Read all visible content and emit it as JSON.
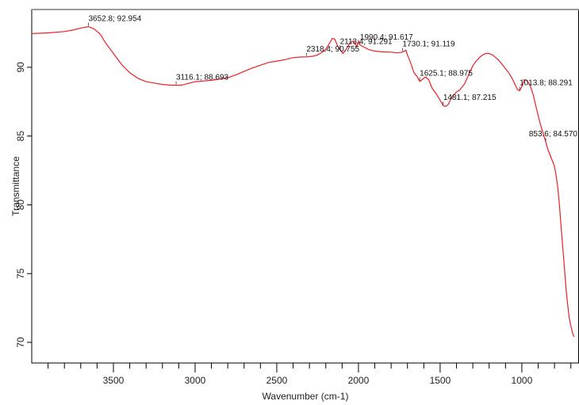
{
  "chart_data": {
    "type": "line",
    "title": "",
    "xlabel": "Wavenumber (cm-1)",
    "ylabel": "Transmittance",
    "xlim": [
      4000,
      650
    ],
    "ylim": [
      68.5,
      94.2
    ],
    "x_reversed": true,
    "x_major_ticks": [
      3500,
      3000,
      2500,
      2000,
      1500,
      1000
    ],
    "x_tick_labels": [
      "3500",
      "3000",
      "2500",
      "2000",
      "1500",
      "1000"
    ],
    "x_minor_step": 100,
    "y_ticks": [
      70,
      75,
      80,
      85,
      90
    ],
    "y_tick_labels": [
      "70",
      "75",
      "80",
      "85",
      "90"
    ],
    "y_tick_rotation": -90,
    "grid": false,
    "legend": "none",
    "line_color": "#e8202a",
    "series": [
      {
        "points": [
          [
            4000,
            92.45
          ],
          [
            3900,
            92.5
          ],
          [
            3800,
            92.6
          ],
          [
            3750,
            92.7
          ],
          [
            3700,
            92.85
          ],
          [
            3652.8,
            92.954
          ],
          [
            3620,
            92.8
          ],
          [
            3580,
            92.4
          ],
          [
            3550,
            91.8
          ],
          [
            3500,
            91.0
          ],
          [
            3450,
            90.2
          ],
          [
            3400,
            89.6
          ],
          [
            3350,
            89.2
          ],
          [
            3300,
            88.95
          ],
          [
            3250,
            88.85
          ],
          [
            3200,
            88.75
          ],
          [
            3150,
            88.7
          ],
          [
            3116.1,
            88.693
          ],
          [
            3080,
            88.7
          ],
          [
            3050,
            88.8
          ],
          [
            3000,
            88.95
          ],
          [
            2950,
            89.0
          ],
          [
            2900,
            89.05
          ],
          [
            2850,
            89.15
          ],
          [
            2800,
            89.25
          ],
          [
            2750,
            89.45
          ],
          [
            2700,
            89.7
          ],
          [
            2650,
            89.95
          ],
          [
            2600,
            90.15
          ],
          [
            2550,
            90.35
          ],
          [
            2500,
            90.45
          ],
          [
            2450,
            90.55
          ],
          [
            2400,
            90.7
          ],
          [
            2350,
            90.75
          ],
          [
            2318.4,
            90.755
          ],
          [
            2280,
            90.8
          ],
          [
            2250,
            90.9
          ],
          [
            2220,
            91.1
          ],
          [
            2200,
            91.3
          ],
          [
            2180,
            91.7
          ],
          [
            2160,
            92.1
          ],
          [
            2145,
            92.05
          ],
          [
            2130,
            91.6
          ],
          [
            2113.4,
            91.291
          ],
          [
            2095,
            91.0
          ],
          [
            2070,
            91.4
          ],
          [
            2050,
            91.8
          ],
          [
            2030,
            91.9
          ],
          [
            2010,
            91.5
          ],
          [
            2000,
            91.9
          ],
          [
            1990.4,
            91.617
          ],
          [
            1970,
            91.5
          ],
          [
            1940,
            91.3
          ],
          [
            1910,
            91.2
          ],
          [
            1880,
            91.15
          ],
          [
            1850,
            91.12
          ],
          [
            1800,
            91.1
          ],
          [
            1760,
            91.05
          ],
          [
            1730,
            91.1
          ],
          [
            1710,
            91.25
          ],
          [
            1700,
            90.9
          ],
          [
            1680,
            90.3
          ],
          [
            1660,
            89.6
          ],
          [
            1640,
            89.3
          ],
          [
            1625.1,
            88.975
          ],
          [
            1610,
            89.1
          ],
          [
            1590,
            89.3
          ],
          [
            1570,
            89.1
          ],
          [
            1550,
            88.5
          ],
          [
            1520,
            88.0
          ],
          [
            1500,
            87.6
          ],
          [
            1481.1,
            87.215
          ],
          [
            1465,
            87.15
          ],
          [
            1450,
            87.3
          ],
          [
            1430,
            87.8
          ],
          [
            1400,
            88.2
          ],
          [
            1380,
            88.35
          ],
          [
            1350,
            88.8
          ],
          [
            1320,
            89.6
          ],
          [
            1300,
            90.1
          ],
          [
            1280,
            90.45
          ],
          [
            1260,
            90.7
          ],
          [
            1240,
            90.9
          ],
          [
            1220,
            91.0
          ],
          [
            1200,
            91.0
          ],
          [
            1180,
            90.9
          ],
          [
            1160,
            90.7
          ],
          [
            1140,
            90.5
          ],
          [
            1120,
            90.2
          ],
          [
            1100,
            89.9
          ],
          [
            1080,
            89.6
          ],
          [
            1060,
            89.2
          ],
          [
            1040,
            88.7
          ],
          [
            1025,
            88.35
          ],
          [
            1013.8,
            88.291
          ],
          [
            1000,
            88.6
          ],
          [
            985,
            89.1
          ],
          [
            970,
            89.05
          ],
          [
            950,
            88.7
          ],
          [
            930,
            88.0
          ],
          [
            910,
            87.0
          ],
          [
            890,
            86.0
          ],
          [
            870,
            85.2
          ],
          [
            853.6,
            84.57
          ],
          [
            840,
            84.0
          ],
          [
            820,
            83.4
          ],
          [
            800,
            82.8
          ],
          [
            790,
            82.1
          ],
          [
            780,
            81.3
          ],
          [
            770,
            80.0
          ],
          [
            760,
            78.5
          ],
          [
            750,
            77.0
          ],
          [
            740,
            75.5
          ],
          [
            730,
            74.0
          ],
          [
            720,
            72.8
          ],
          [
            710,
            71.8
          ],
          [
            700,
            71.2
          ],
          [
            690,
            70.7
          ],
          [
            680,
            70.4
          ]
        ]
      }
    ],
    "annotations": [
      {
        "x": 3652.8,
        "y": 92.954,
        "text": "3652.8; 92.954"
      },
      {
        "x": 3116.1,
        "y": 88.693,
        "text": "3116.1; 88.693"
      },
      {
        "x": 2318.4,
        "y": 90.755,
        "text": "2318.4; 90.755"
      },
      {
        "x": 2113.4,
        "y": 91.291,
        "text": "2113.4; 91.291"
      },
      {
        "x": 1990.4,
        "y": 91.617,
        "text": "1990.4; 91.617"
      },
      {
        "x": 1730.1,
        "y": 91.119,
        "text": "1730.1; 91.119"
      },
      {
        "x": 1625.1,
        "y": 88.975,
        "text": "1625.1; 88.975"
      },
      {
        "x": 1481.1,
        "y": 87.215,
        "text": "1481.1; 87.215"
      },
      {
        "x": 1013.8,
        "y": 88.291,
        "text": "1013.8; 88.291"
      },
      {
        "x": 853.6,
        "y": 84.57,
        "text": "853.6; 84.570"
      }
    ]
  }
}
